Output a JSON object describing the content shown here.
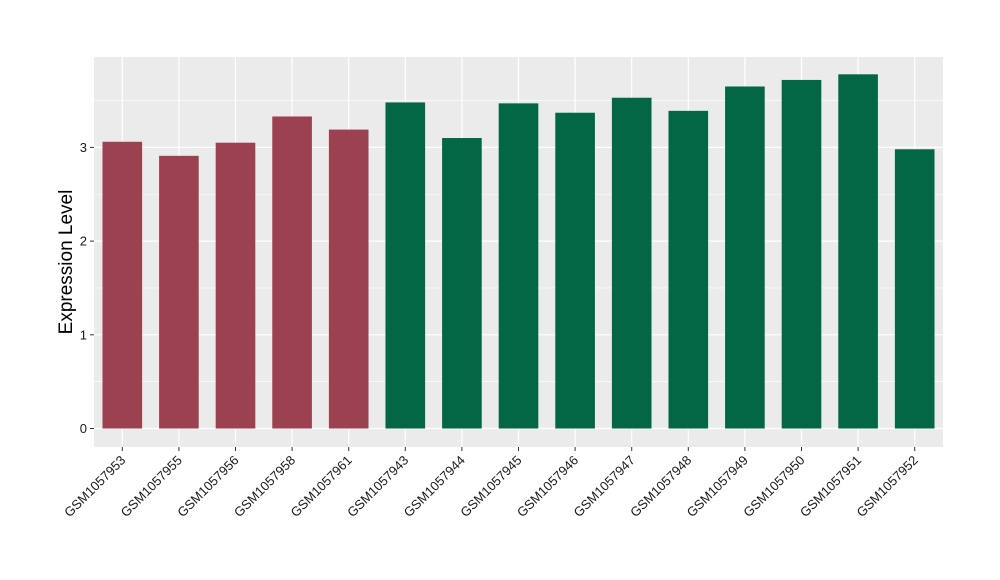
{
  "chart_data": {
    "type": "bar",
    "title": "",
    "xlabel": "",
    "ylabel": "Expression Level",
    "ylim": [
      0,
      3.9
    ],
    "yticks": [
      0,
      1,
      2,
      3
    ],
    "ytick_labels": [
      "0",
      "1",
      "2",
      "3"
    ],
    "grid": true,
    "legend": "none",
    "categories": [
      "GSM1057953",
      "GSM1057955",
      "GSM1057956",
      "GSM1057958",
      "GSM1057961",
      "GSM1057943",
      "GSM1057944",
      "GSM1057945",
      "GSM1057946",
      "GSM1057947",
      "GSM1057948",
      "GSM1057949",
      "GSM1057950",
      "GSM1057951",
      "GSM1057952"
    ],
    "values": [
      3.06,
      2.91,
      3.05,
      3.33,
      3.19,
      3.48,
      3.1,
      3.47,
      3.37,
      3.53,
      3.39,
      3.65,
      3.72,
      3.78,
      2.98
    ],
    "groups": [
      0,
      0,
      0,
      0,
      0,
      1,
      1,
      1,
      1,
      1,
      1,
      1,
      1,
      1,
      1
    ],
    "group_colors": [
      "#9b4150",
      "#036745"
    ],
    "background_color": "#ebebeb",
    "grid_color": "#ffffff"
  }
}
